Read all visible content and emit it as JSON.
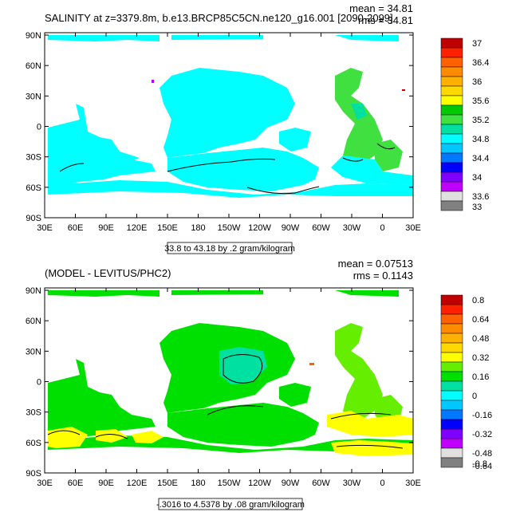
{
  "panels": [
    {
      "title": "SALINITY at z=3379.8m, b.e13.BRCP85C5CN.ne120_g16.001 [2090-2099]",
      "mean": "mean = 34.81",
      "rms": "rms = 34.81",
      "range": "33.8 to 43.18 by .2 gram/kilogram",
      "colorbar_labels": [
        "37",
        "36.4",
        "36",
        "35.6",
        "35.2",
        "34.8",
        "34.4",
        "34",
        "33.6",
        "33"
      ]
    },
    {
      "title": "(MODEL - LEVITUS/PHC2)",
      "mean": "mean = 0.07513",
      "rms": "rms = 0.1143",
      "range": "-.3016 to 4.5378 by .08 gram/kilogram",
      "colorbar_labels": [
        "0.8",
        "0.64",
        "0.48",
        "0.32",
        "0.16",
        "0",
        "-0.16",
        "-0.32",
        "-0.48",
        "-0.64",
        "-0.8"
      ]
    }
  ],
  "lat_labels": [
    "90N",
    "60N",
    "30N",
    "0",
    "30S",
    "60S",
    "90S"
  ],
  "lon_labels": [
    "30E",
    "60E",
    "90E",
    "120E",
    "150E",
    "180",
    "150W",
    "120W",
    "90W",
    "60W",
    "30W",
    "0",
    "30E"
  ],
  "colors": {
    "panel1_scale": [
      "#c00000",
      "#ff2000",
      "#ff6000",
      "#ff8c00",
      "#ffb000",
      "#ffd800",
      "#ffff00",
      "#00c800",
      "#40e040",
      "#00e0a0",
      "#00ffff",
      "#00c8ff",
      "#0078ff",
      "#0000ff",
      "#8000ff",
      "#c000ff",
      "#e0e0e0",
      "#808080"
    ],
    "panel2_scale": [
      "#c00000",
      "#ff2000",
      "#ff6000",
      "#ff8c00",
      "#ffb000",
      "#ffd800",
      "#ffff00",
      "#66ee00",
      "#00e000",
      "#00e0a0",
      "#00ffff",
      "#00c8ff",
      "#0078ff",
      "#0000ff",
      "#8000ff",
      "#c000ff",
      "#e0e0e0",
      "#808080"
    ]
  }
}
